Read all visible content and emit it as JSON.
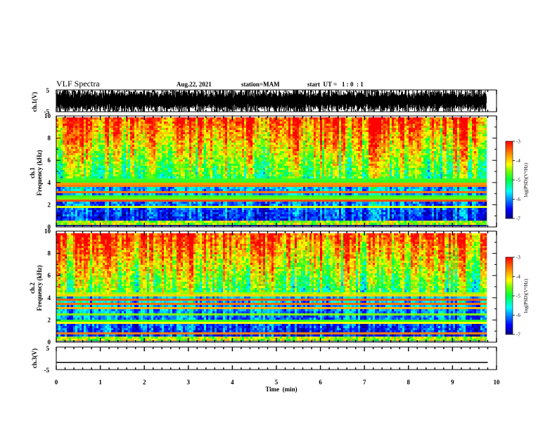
{
  "header": {
    "title": "VLF Spectra",
    "date": "Aug.22, 2021",
    "station": "station=MAM",
    "start_ut": "start  UT =   1 : 0  : 1"
  },
  "chart_data": [
    {
      "type": "line",
      "panel": "ch1_waveform",
      "ylabel": "ch.1(V)",
      "ylim": [
        -5,
        5
      ],
      "ytick_labels": [
        "5",
        "-5"
      ],
      "xlim": [
        0,
        10
      ],
      "description_of_trace": "dense broadband noise bursts"
    },
    {
      "type": "heatmap",
      "panel": "ch1_spectrogram",
      "ylabel_line1": "ch.1",
      "ylabel_line2": "Frequency (kHz)",
      "ylim": [
        0,
        10
      ],
      "ytick_labels": [
        "0",
        "2",
        "4",
        "6",
        "8",
        "10"
      ],
      "xlim": [
        0,
        10
      ],
      "colorbar": {
        "label": "log(PSD)(V²/Hz)",
        "range": [
          -7,
          -3
        ],
        "tick_labels": [
          "-3",
          "-4",
          "-5",
          "-6",
          "-7"
        ]
      }
    },
    {
      "type": "heatmap",
      "panel": "ch2_spectrogram",
      "ylabel_line1": "ch.2",
      "ylabel_line2": "Frequency (kHz)",
      "ylim": [
        0,
        10
      ],
      "ytick_labels": [
        "0",
        "2",
        "4",
        "6",
        "8",
        "10"
      ],
      "xlim": [
        0,
        10
      ],
      "colorbar": {
        "label": "log(PSD)(V²/Hz)",
        "range": [
          -7,
          -3
        ],
        "tick_labels": [
          "-3",
          "-4",
          "-5",
          "-6",
          "-7"
        ]
      }
    },
    {
      "type": "line",
      "panel": "ch3_waveform",
      "ylabel": "ch.3(V)",
      "ylim": [
        -5,
        5
      ],
      "ytick_labels": [
        "5",
        "-5"
      ],
      "x": [
        0,
        9.8
      ],
      "y": [
        -1.8,
        -1.8
      ]
    }
  ],
  "xaxis": {
    "label": "Time  (min)",
    "tick_labels": [
      "0",
      "1",
      "2",
      "3",
      "4",
      "5",
      "6",
      "7",
      "8",
      "9",
      "10"
    ]
  },
  "colors": {
    "spectrum_low": "#00008f",
    "spectrum_high": "#ff0000"
  }
}
